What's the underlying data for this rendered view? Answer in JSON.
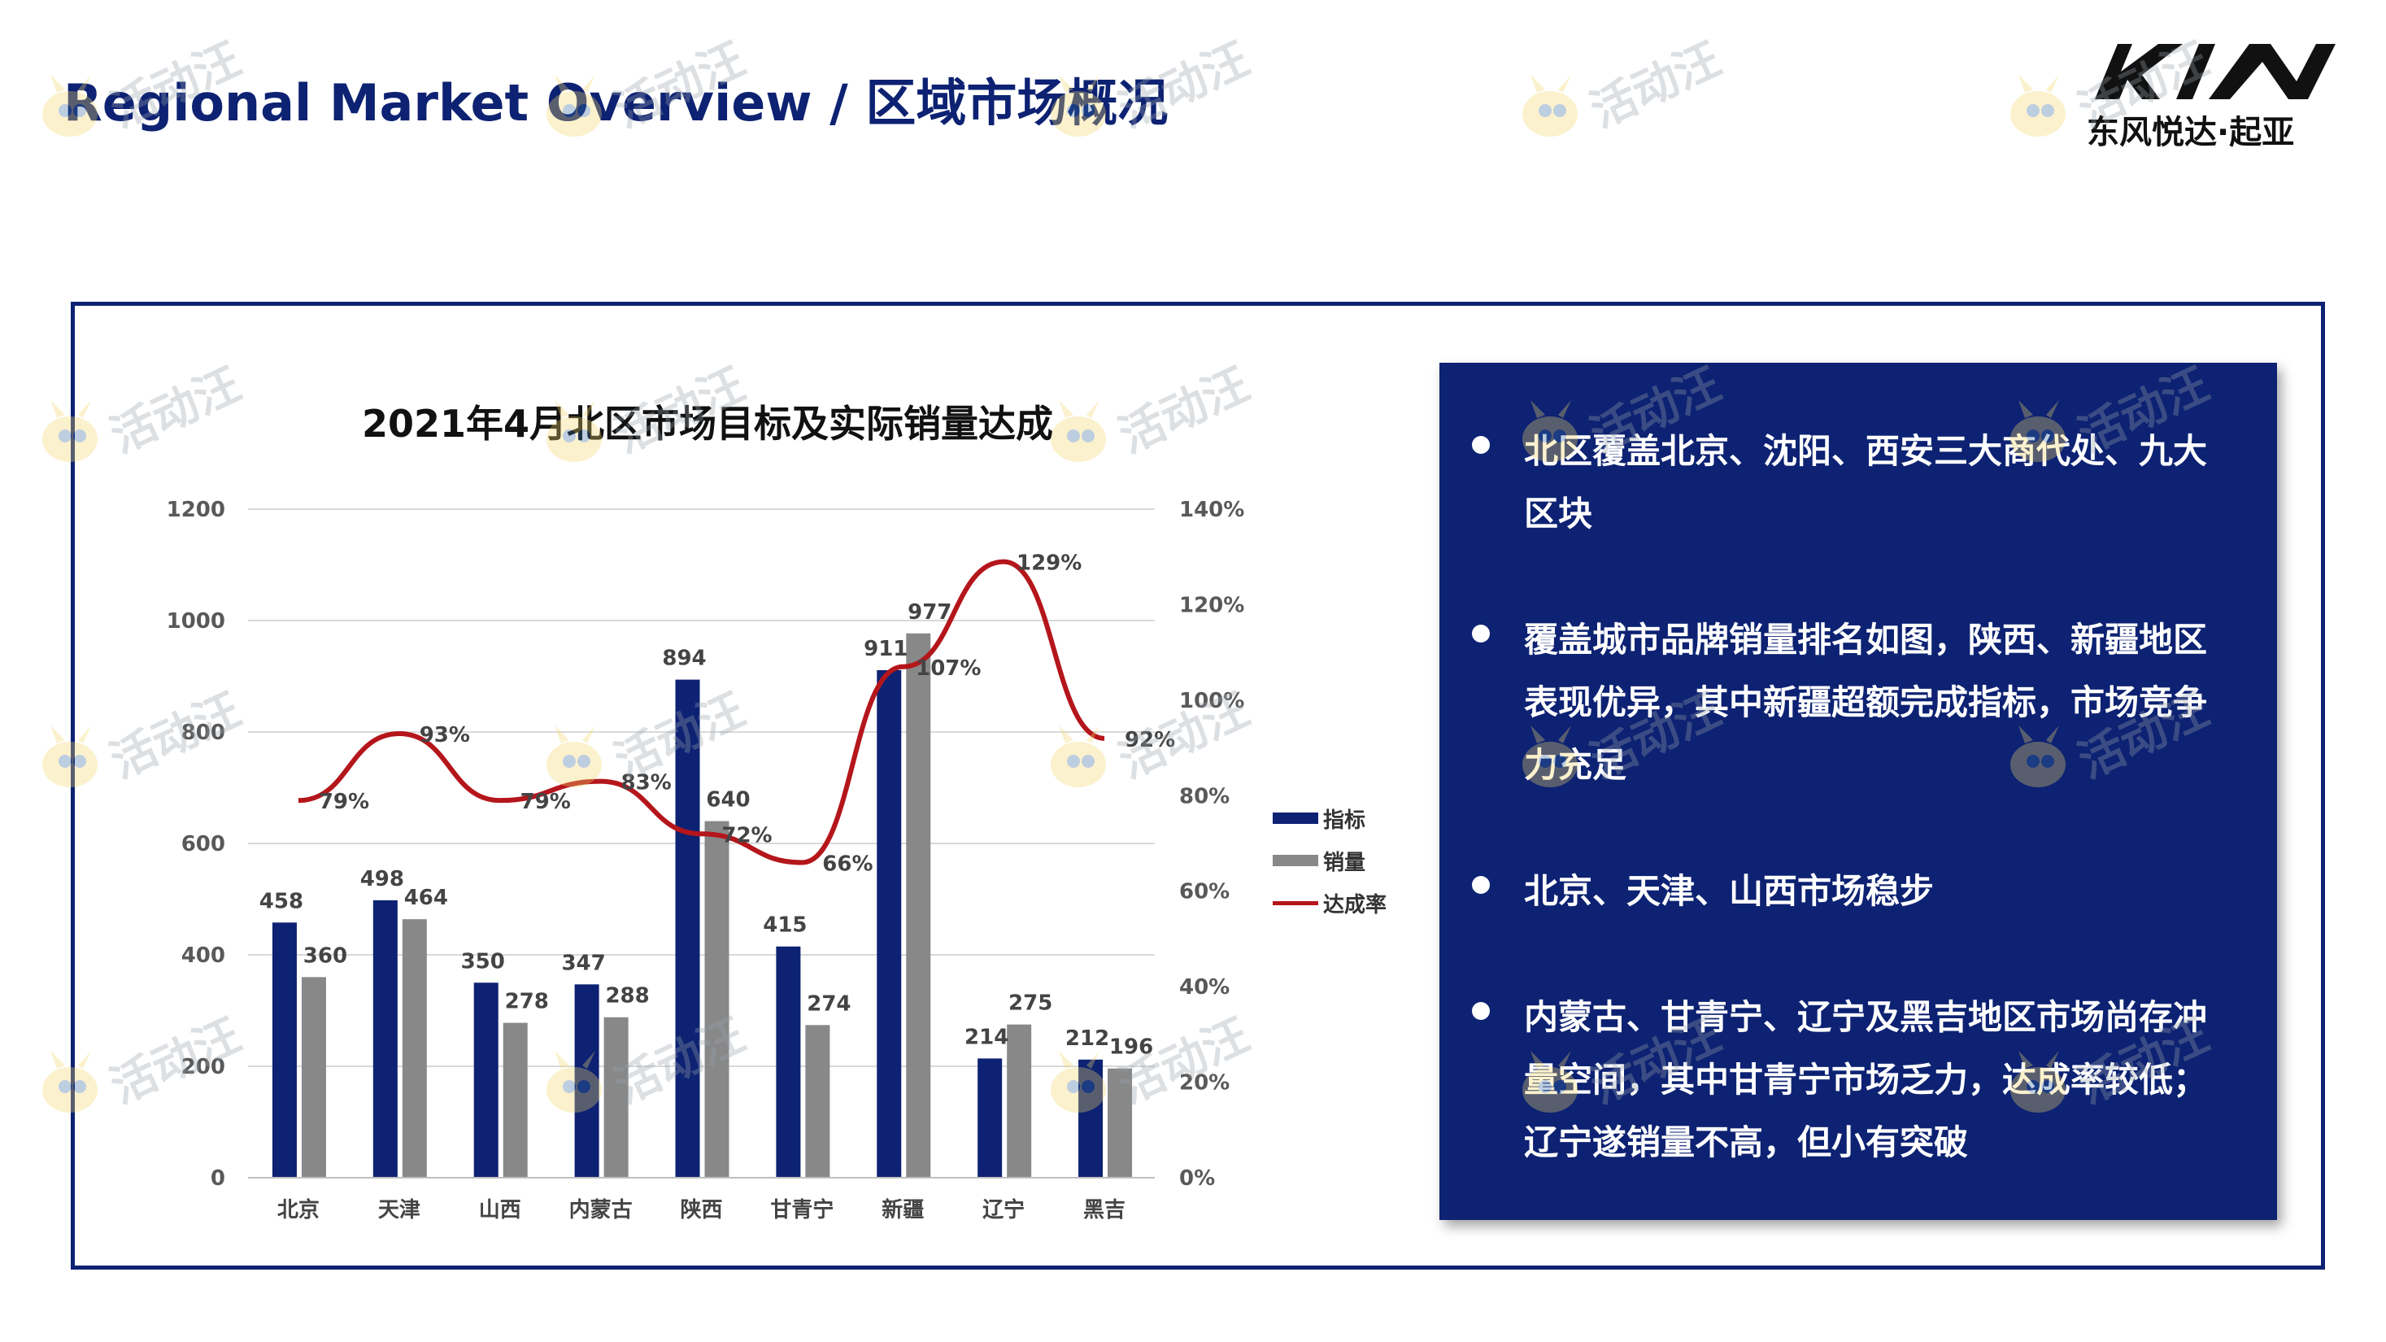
{
  "header": {
    "title": "Regional Market Overview / 区域市场概况"
  },
  "brand": {
    "logo_text": "KIA",
    "logo_subtitle": "东风悦达·起亚"
  },
  "watermark": {
    "text": "活动汪"
  },
  "colors": {
    "brand_navy": "#0d2272",
    "bar_target": "#0d2272",
    "bar_sales": "#888888",
    "line_rate": "#b4161b"
  },
  "chart_data": {
    "type": "bar",
    "title": "2021年4月北区市场目标及实际销量达成",
    "categories": [
      "北京",
      "天津",
      "山西",
      "内蒙古",
      "陕西",
      "甘青宁",
      "新疆",
      "辽宁",
      "黑吉"
    ],
    "series": [
      {
        "name": "指标",
        "type": "bar",
        "axis": "left",
        "values": [
          458,
          498,
          350,
          347,
          894,
          415,
          911,
          214,
          212
        ]
      },
      {
        "name": "销量",
        "type": "bar",
        "axis": "left",
        "values": [
          360,
          464,
          278,
          288,
          640,
          274,
          977,
          275,
          196
        ]
      },
      {
        "name": "达成率",
        "type": "line",
        "axis": "right",
        "values": [
          79,
          93,
          79,
          83,
          72,
          66,
          107,
          129,
          92
        ]
      }
    ],
    "rate_labels": [
      "79%",
      "93%",
      "79%",
      "83%",
      "72%",
      "66%",
      "107%",
      "129%",
      "92%"
    ],
    "ylim_left": [
      0,
      1200
    ],
    "yticks_left": [
      "0",
      "200",
      "400",
      "600",
      "800",
      "1000",
      "1200"
    ],
    "ylim_right": [
      0,
      140
    ],
    "yticks_right": [
      "0%",
      "20%",
      "40%",
      "60%",
      "80%",
      "100%",
      "120%",
      "140%"
    ],
    "grid": true,
    "legend_position": "right"
  },
  "panel": {
    "bullets": [
      "北区覆盖北京、沈阳、西安三大商代处、九大区块",
      "覆盖城市品牌销量排名如图，陕西、新疆地区表现优异，其中新疆超额完成指标，市场竞争力充足",
      "北京、天津、山西市场稳步",
      "内蒙古、甘青宁、辽宁及黑吉地区市场尚存冲量空间，其中甘青宁市场乏力，达成率较低；辽宁遂销量不高，但小有突破"
    ]
  }
}
